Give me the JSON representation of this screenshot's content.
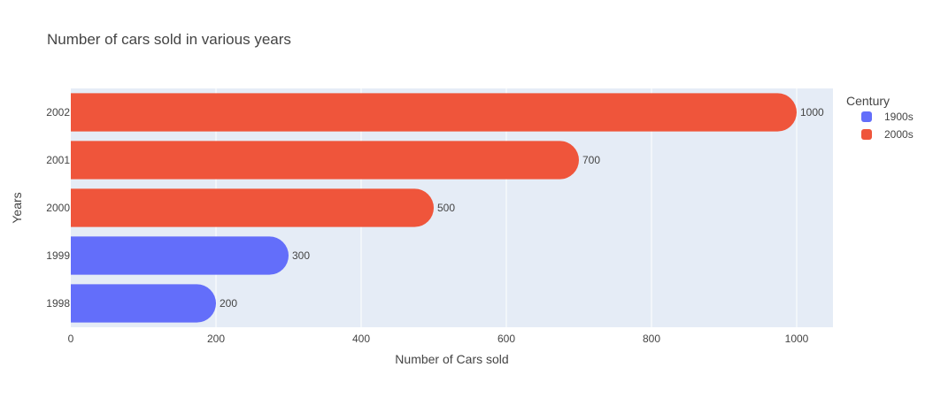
{
  "chart_data": {
    "type": "bar",
    "orientation": "horizontal",
    "title": "Number of cars sold in various years",
    "xlabel": "Number of Cars sold",
    "ylabel": "Years",
    "xlim": [
      0,
      1050
    ],
    "xticks": [
      0,
      200,
      400,
      600,
      800,
      1000
    ],
    "categories": [
      "1998",
      "1999",
      "2000",
      "2001",
      "2002"
    ],
    "values": [
      200,
      300,
      500,
      700,
      1000
    ],
    "groups": [
      "1900s",
      "1900s",
      "2000s",
      "2000s",
      "2000s"
    ],
    "grid": true,
    "legend": {
      "title": "Century",
      "position": "right",
      "entries": [
        {
          "name": "1900s",
          "color": "#636efa"
        },
        {
          "name": "2000s",
          "color": "#ef553b"
        }
      ]
    }
  },
  "colors": {
    "plot_bg": "#e5ecf6",
    "grid": "#ffffff",
    "text": "#444444"
  }
}
